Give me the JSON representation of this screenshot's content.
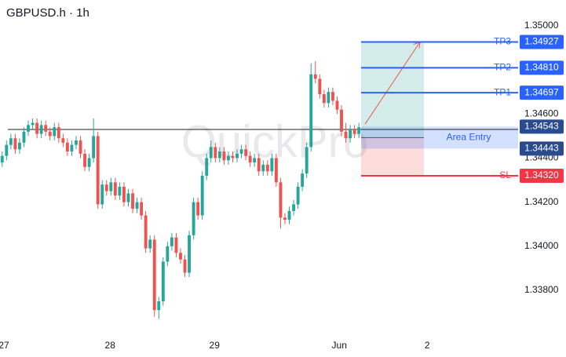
{
  "chart_data": {
    "type": "candlestick",
    "title": "GBPUSD.h · 1h",
    "watermark": "QuickPro",
    "up_color": "#26a69a",
    "down_color": "#ef5350",
    "open": [
      1.3438,
      1.3441,
      1.3446,
      1.3449,
      1.3444,
      1.3447,
      1.3452,
      1.3455,
      1.3456,
      1.3451,
      1.3455,
      1.3452,
      1.345,
      1.3454,
      1.3449,
      1.3447,
      1.3443,
      1.3446,
      1.3448,
      1.3442,
      1.3436,
      1.344,
      1.345,
      1.3419,
      1.3428,
      1.3425,
      1.3429,
      1.3423,
      1.3427,
      1.342,
      1.3424,
      1.3417,
      1.342,
      1.3414,
      1.3399,
      1.3403,
      1.3371,
      1.3375,
      1.3393,
      1.34,
      1.3404,
      1.3397,
      1.3394,
      1.3388,
      1.3405,
      1.342,
      1.3414,
      1.3432,
      1.344,
      1.3445,
      1.344,
      1.3443,
      1.3439,
      1.3441,
      1.344,
      1.3442,
      1.3444,
      1.3441,
      1.3438,
      1.344,
      1.3434,
      1.3437,
      1.3434,
      1.344,
      1.3429,
      1.3413,
      1.3412,
      1.3416,
      1.3419,
      1.3427,
      1.3433,
      1.3445,
      1.3478,
      1.3476,
      1.3469,
      1.3465,
      1.347,
      1.3466,
      1.3462,
      1.3452,
      1.3449,
      1.3453,
      1.3451
    ],
    "high": [
      1.3443,
      1.3448,
      1.3451,
      1.3451,
      1.3449,
      1.3454,
      1.3457,
      1.3458,
      1.3458,
      1.3457,
      1.3457,
      1.3454,
      1.3456,
      1.3456,
      1.3451,
      1.3449,
      1.3448,
      1.345,
      1.345,
      1.3444,
      1.3442,
      1.3458,
      1.3452,
      1.343,
      1.343,
      1.3431,
      1.3431,
      1.3429,
      1.3429,
      1.3426,
      1.3426,
      1.3422,
      1.3422,
      1.3416,
      1.3405,
      1.3405,
      1.3377,
      1.3395,
      1.3402,
      1.3406,
      1.3406,
      1.3399,
      1.3396,
      1.3407,
      1.3422,
      1.3422,
      1.3434,
      1.3442,
      1.3448,
      1.3447,
      1.3445,
      1.3445,
      1.3443,
      1.3443,
      1.3444,
      1.3446,
      1.3446,
      1.3443,
      1.3442,
      1.3442,
      1.3439,
      1.3439,
      1.3442,
      1.3442,
      1.3431,
      1.3415,
      1.3418,
      1.3421,
      1.3429,
      1.3435,
      1.3447,
      1.3483,
      1.3484,
      1.3478,
      1.3471,
      1.3472,
      1.3472,
      1.3468,
      1.3464,
      1.3456,
      1.3455,
      1.3455,
      1.3456
    ],
    "low": [
      1.3436,
      1.3439,
      1.3444,
      1.3442,
      1.3442,
      1.3445,
      1.345,
      1.3453,
      1.3449,
      1.3449,
      1.345,
      1.3448,
      1.3448,
      1.3447,
      1.3445,
      1.3441,
      1.3441,
      1.3444,
      1.344,
      1.3434,
      1.3434,
      1.3438,
      1.3417,
      1.3417,
      1.3423,
      1.3423,
      1.3421,
      1.3421,
      1.3418,
      1.3418,
      1.3415,
      1.3415,
      1.3412,
      1.3397,
      1.3397,
      1.3368,
      1.3367,
      1.3373,
      1.3391,
      1.3398,
      1.3395,
      1.3392,
      1.3386,
      1.3386,
      1.3403,
      1.3412,
      1.3412,
      1.343,
      1.3438,
      1.3438,
      1.3438,
      1.3437,
      1.3437,
      1.3438,
      1.3438,
      1.344,
      1.3439,
      1.3436,
      1.3436,
      1.3432,
      1.3432,
      1.3432,
      1.3432,
      1.3427,
      1.3408,
      1.341,
      1.341,
      1.3414,
      1.3417,
      1.3425,
      1.3431,
      1.3443,
      1.3474,
      1.3467,
      1.3463,
      1.3463,
      1.3464,
      1.346,
      1.345,
      1.3447,
      1.3447,
      1.3449,
      1.3449
    ],
    "close": [
      1.3441,
      1.3446,
      1.3449,
      1.3444,
      1.3447,
      1.3452,
      1.3455,
      1.3456,
      1.3451,
      1.3455,
      1.3452,
      1.345,
      1.3454,
      1.3449,
      1.3447,
      1.3443,
      1.3446,
      1.3448,
      1.3442,
      1.3436,
      1.344,
      1.345,
      1.3419,
      1.3428,
      1.3425,
      1.3429,
      1.3423,
      1.3427,
      1.342,
      1.3424,
      1.3417,
      1.342,
      1.3414,
      1.3399,
      1.3403,
      1.3371,
      1.3375,
      1.3393,
      1.34,
      1.3404,
      1.3397,
      1.3394,
      1.3388,
      1.3405,
      1.342,
      1.3414,
      1.3432,
      1.344,
      1.3445,
      1.344,
      1.3443,
      1.3439,
      1.3441,
      1.344,
      1.3442,
      1.3444,
      1.3441,
      1.3438,
      1.344,
      1.3434,
      1.3437,
      1.3434,
      1.344,
      1.3429,
      1.3413,
      1.3412,
      1.3416,
      1.3419,
      1.3427,
      1.3433,
      1.3445,
      1.3478,
      1.3476,
      1.3469,
      1.3465,
      1.347,
      1.3466,
      1.3462,
      1.3452,
      1.3449,
      1.3453,
      1.3451,
      1.3454
    ],
    "xlim": [
      -0.5,
      118.6
    ],
    "xticks": [
      {
        "value": 0.4,
        "label": "27"
      },
      {
        "value": 24.8,
        "label": "28"
      },
      {
        "value": 48.8,
        "label": "29"
      },
      {
        "value": 77.5,
        "label": "Jun"
      },
      {
        "value": 97.7,
        "label": "2"
      }
    ],
    "ylim": [
      1.335863,
      1.351175
    ],
    "yticks": [
      {
        "value": 1.35,
        "label": "1.35000"
      },
      {
        "value": 1.346,
        "label": "1.34600"
      },
      {
        "value": 1.344,
        "label": "1.34400"
      },
      {
        "value": 1.342,
        "label": "1.34200"
      },
      {
        "value": 1.34,
        "label": "1.34000"
      },
      {
        "value": 1.338,
        "label": "1.33800"
      }
    ],
    "hline": 1.3453,
    "levels": [
      {
        "name": "TP3",
        "value": 1.34927,
        "label": "1.34927",
        "color": "#2962ff"
      },
      {
        "name": "TP2",
        "value": 1.3481,
        "label": "1.34810",
        "color": "#2962ff"
      },
      {
        "name": "TP1",
        "value": 1.34697,
        "label": "1.34697",
        "color": "#2962ff"
      },
      {
        "name": "SL",
        "value": 1.3432,
        "label": "1.34320",
        "color": "#f23645"
      }
    ],
    "entry_zone": {
      "name": "Area Entry",
      "top": {
        "value": 1.34543,
        "label": "1.34543"
      },
      "bottom": {
        "value": 1.34443,
        "label": "1.34443"
      },
      "color": "#2a4b8d"
    },
    "entry_price": 1.34493
  }
}
